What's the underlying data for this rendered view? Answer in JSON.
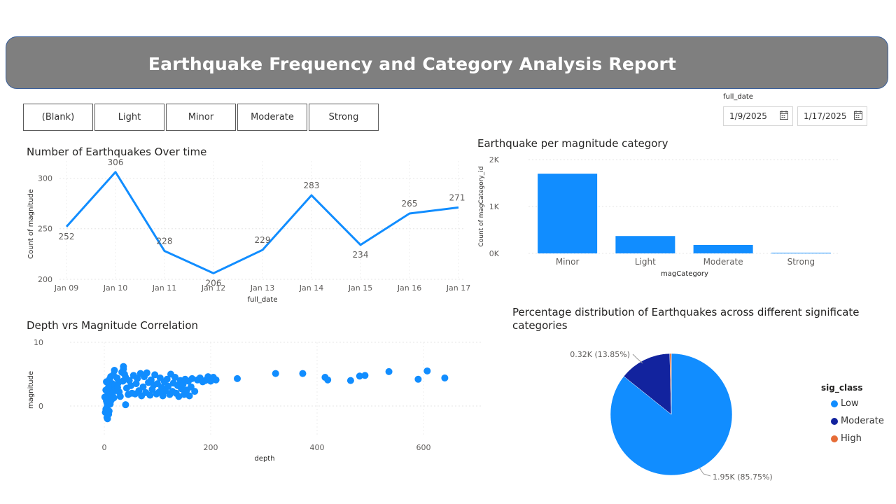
{
  "report": {
    "title": "Earthquake Frequency and Category Analysis Report"
  },
  "slicer": {
    "buttons": [
      "(Blank)",
      "Light",
      "Minor",
      "Moderate",
      "Strong"
    ]
  },
  "date_filter": {
    "label": "full_date",
    "start": "1/9/2025",
    "end": "1/17/2025",
    "icon": "calendar-icon"
  },
  "colors": {
    "primary": "#118DFF",
    "dark_blue": "#12239E",
    "orange": "#E66C37",
    "banner": "#7F7F7F"
  },
  "chart_data": [
    {
      "id": "line",
      "type": "line",
      "title": "Number of Earthquakes Over time",
      "xlabel": "full_date",
      "ylabel": "Count of magnitude",
      "categories": [
        "Jan 09",
        "Jan 10",
        "Jan 11",
        "Jan 12",
        "Jan 13",
        "Jan 14",
        "Jan 15",
        "Jan 16",
        "Jan 17"
      ],
      "values": [
        252,
        306,
        228,
        206,
        229,
        283,
        234,
        265,
        271
      ],
      "data_labels": [
        "252",
        "306",
        "228",
        "206",
        "229",
        "283",
        "234",
        "265",
        "271"
      ],
      "yticks": [
        200,
        250,
        300
      ],
      "ylim": [
        200,
        310
      ],
      "grid": true
    },
    {
      "id": "bar",
      "type": "bar",
      "title": "Earthquake per magnitude category",
      "xlabel": "magCategory",
      "ylabel": "Count of magCategory_id",
      "categories": [
        "Minor",
        "Light",
        "Moderate",
        "Strong"
      ],
      "values": [
        1700,
        370,
        180,
        10
      ],
      "yticks": [
        "0K",
        "1K",
        "2K"
      ],
      "ylim": [
        0,
        2000
      ],
      "grid": true
    },
    {
      "id": "scatter",
      "type": "scatter",
      "title": "Depth vrs Magnitude Correlation",
      "xlabel": "depth",
      "ylabel": "magnitude",
      "xticks": [
        0,
        200,
        400,
        600
      ],
      "yticks": [
        0,
        10
      ],
      "xlim": [
        -20,
        650
      ],
      "ylim": [
        -2.5,
        10
      ],
      "grid": true,
      "points": [
        [
          5,
          0.5
        ],
        [
          8,
          2.3
        ],
        [
          10,
          1.0
        ],
        [
          3,
          -0.5
        ],
        [
          6,
          1.6
        ],
        [
          12,
          2.8
        ],
        [
          15,
          3.5
        ],
        [
          4,
          0.8
        ],
        [
          9,
          1.2
        ],
        [
          2,
          -1.0
        ],
        [
          7,
          2.0
        ],
        [
          11,
          0.3
        ],
        [
          14,
          1.7
        ],
        [
          6,
          -1.5
        ],
        [
          3,
          2.5
        ],
        [
          8,
          3.0
        ],
        [
          10,
          4.2
        ],
        [
          12,
          4.6
        ],
        [
          4,
          3.8
        ],
        [
          5,
          -0.2
        ],
        [
          1,
          1.4
        ],
        [
          9,
          -0.8
        ],
        [
          13,
          0.9
        ],
        [
          16,
          2.1
        ],
        [
          18,
          1.3
        ],
        [
          20,
          3.3
        ],
        [
          22,
          2.6
        ],
        [
          17,
          4.9
        ],
        [
          19,
          5.6
        ],
        [
          24,
          4.4
        ],
        [
          26,
          3.6
        ],
        [
          28,
          2.2
        ],
        [
          30,
          1.5
        ],
        [
          33,
          5.3
        ],
        [
          36,
          6.2
        ],
        [
          38,
          5.0
        ],
        [
          35,
          3.9
        ],
        [
          40,
          4.5
        ],
        [
          42,
          2.8
        ],
        [
          45,
          1.8
        ],
        [
          47,
          4.0
        ],
        [
          50,
          3.2
        ],
        [
          52,
          2.0
        ],
        [
          55,
          4.8
        ],
        [
          58,
          1.9
        ],
        [
          60,
          3.5
        ],
        [
          62,
          4.3
        ],
        [
          65,
          2.4
        ],
        [
          68,
          5.1
        ],
        [
          70,
          1.6
        ],
        [
          73,
          3.0
        ],
        [
          75,
          4.6
        ],
        [
          78,
          2.1
        ],
        [
          80,
          5.2
        ],
        [
          83,
          3.7
        ],
        [
          86,
          1.7
        ],
        [
          88,
          4.1
        ],
        [
          90,
          2.6
        ],
        [
          93,
          3.3
        ],
        [
          95,
          4.9
        ],
        [
          98,
          1.9
        ],
        [
          100,
          3.5
        ],
        [
          103,
          2.2
        ],
        [
          105,
          4.4
        ],
        [
          108,
          2.9
        ],
        [
          110,
          1.6
        ],
        [
          113,
          3.8
        ],
        [
          115,
          2.4
        ],
        [
          118,
          4.2
        ],
        [
          120,
          3.1
        ],
        [
          123,
          1.8
        ],
        [
          125,
          5.0
        ],
        [
          128,
          2.3
        ],
        [
          130,
          3.6
        ],
        [
          133,
          4.5
        ],
        [
          135,
          2.0
        ],
        [
          138,
          3.2
        ],
        [
          140,
          1.5
        ],
        [
          143,
          4.0
        ],
        [
          145,
          2.7
        ],
        [
          148,
          3.4
        ],
        [
          150,
          1.8
        ],
        [
          152,
          4.2
        ],
        [
          155,
          2.5
        ],
        [
          158,
          3.9
        ],
        [
          160,
          1.6
        ],
        [
          163,
          3.0
        ],
        [
          165,
          4.3
        ],
        [
          170,
          2.3
        ],
        [
          175,
          4.1
        ],
        [
          180,
          4.4
        ],
        [
          185,
          3.8
        ],
        [
          190,
          4.0
        ],
        [
          195,
          4.6
        ],
        [
          200,
          3.9
        ],
        [
          205,
          4.5
        ],
        [
          210,
          4.1
        ],
        [
          40,
          0.2
        ],
        [
          36,
          5.8
        ],
        [
          25,
          2.9
        ],
        [
          250,
          4.3
        ],
        [
          322,
          5.1
        ],
        [
          373,
          5.1
        ],
        [
          415,
          4.5
        ],
        [
          420,
          4.1
        ],
        [
          463,
          4.0
        ],
        [
          480,
          4.7
        ],
        [
          490,
          4.8
        ],
        [
          535,
          5.4
        ],
        [
          590,
          4.2
        ],
        [
          607,
          5.5
        ],
        [
          640,
          4.4
        ],
        [
          6,
          -2.0
        ],
        [
          5,
          -1.8
        ],
        [
          8,
          -1.3
        ]
      ]
    },
    {
      "id": "pie",
      "type": "pie",
      "title": "Percentage distribution of Earthquakes across different significate categories",
      "legend_title": "sig_class",
      "legend_placement": "right",
      "slices": [
        {
          "name": "Low",
          "percent": 85.75,
          "color": "#118DFF",
          "label": "1.95K (85.75%)"
        },
        {
          "name": "Moderate",
          "percent": 13.85,
          "color": "#12239E",
          "label": "0.32K (13.85%)"
        },
        {
          "name": "High",
          "percent": 0.4,
          "color": "#E66C37",
          "label": ""
        }
      ]
    }
  ]
}
